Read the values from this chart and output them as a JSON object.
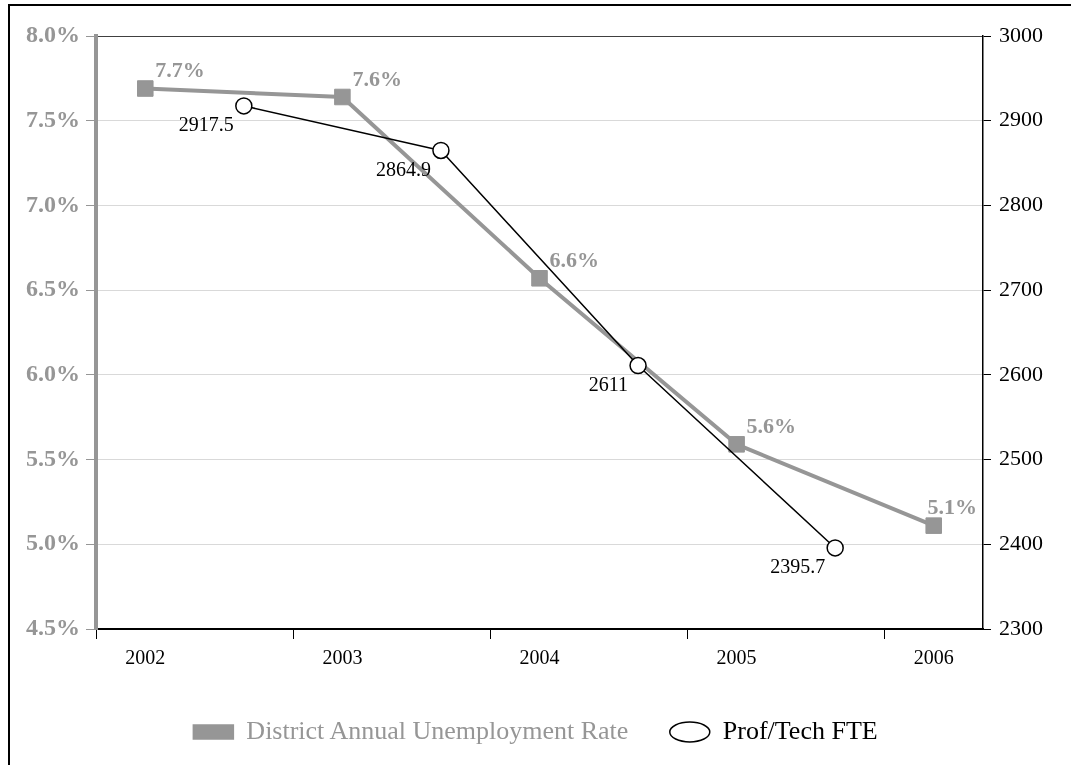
{
  "chart_data": {
    "type": "line",
    "x": [
      2002,
      2003,
      2004,
      2005,
      2006
    ],
    "series": [
      {
        "name": "District Annual Unemployment Rate",
        "color": "#969696",
        "marker": "square",
        "values": [
          7.69,
          7.64,
          6.57,
          5.59,
          5.11
        ],
        "value_labels": [
          "7.7%",
          "7.6%",
          "6.6%",
          "5.6%",
          "5.1%"
        ]
      },
      {
        "name": "Prof/Tech FTE",
        "color": "#000000",
        "marker": "circle",
        "axis": "y2",
        "x": [
          2002.5,
          2003.5,
          2004.5,
          2005.5
        ],
        "values": [
          2917.5,
          2864.9,
          2611,
          2395.7
        ],
        "value_labels": [
          "2917.5",
          "2864.9",
          "2611",
          "2395.7"
        ]
      }
    ],
    "xlim": [
      2001.75,
      2006.25
    ],
    "xticks": [
      2002,
      2003,
      2004,
      2005,
      2006,
      {
        "value": 2001.75,
        "label": null
      },
      {
        "value": 2002.75,
        "label": null
      },
      {
        "value": 2003.75,
        "label": null
      },
      {
        "value": 2004.75,
        "label": null
      },
      {
        "value": 2005.75,
        "label": null
      }
    ],
    "ylim": [
      4.5,
      8.0
    ],
    "yticks": [
      {
        "value": 4.5,
        "label": "4.5%"
      },
      {
        "value": 5.0,
        "label": "5.0%"
      },
      {
        "value": 5.5,
        "label": "5.5%"
      },
      {
        "value": 6.0,
        "label": "6.0%"
      },
      {
        "value": 6.5,
        "label": "6.5%"
      },
      {
        "value": 7.0,
        "label": "7.0%"
      },
      {
        "value": 7.5,
        "label": "7.5%"
      },
      {
        "value": 8.0,
        "label": "8.0%"
      }
    ],
    "y2lim": [
      2300,
      3000
    ],
    "y2ticks": [
      2300,
      2400,
      2500,
      2600,
      2700,
      2800,
      2900,
      3000
    ],
    "grid": "y",
    "legend": "bottom",
    "line_style": "solid"
  }
}
